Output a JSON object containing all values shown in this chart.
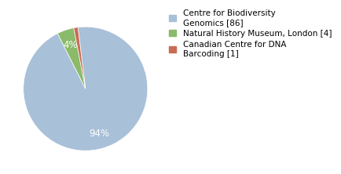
{
  "labels": [
    "Centre for Biodiversity\nGenomics [86]",
    "Natural History Museum, London [4]",
    "Canadian Centre for DNA\nBarcoding [1]"
  ],
  "values": [
    86,
    4,
    1
  ],
  "colors": [
    "#a8c0d8",
    "#8aba6a",
    "#c96c55"
  ],
  "background_color": "#ffffff",
  "startangle": 97,
  "legend_fontsize": 7.5,
  "autopct_fontsize": 8.5,
  "pct_distance": 0.75
}
